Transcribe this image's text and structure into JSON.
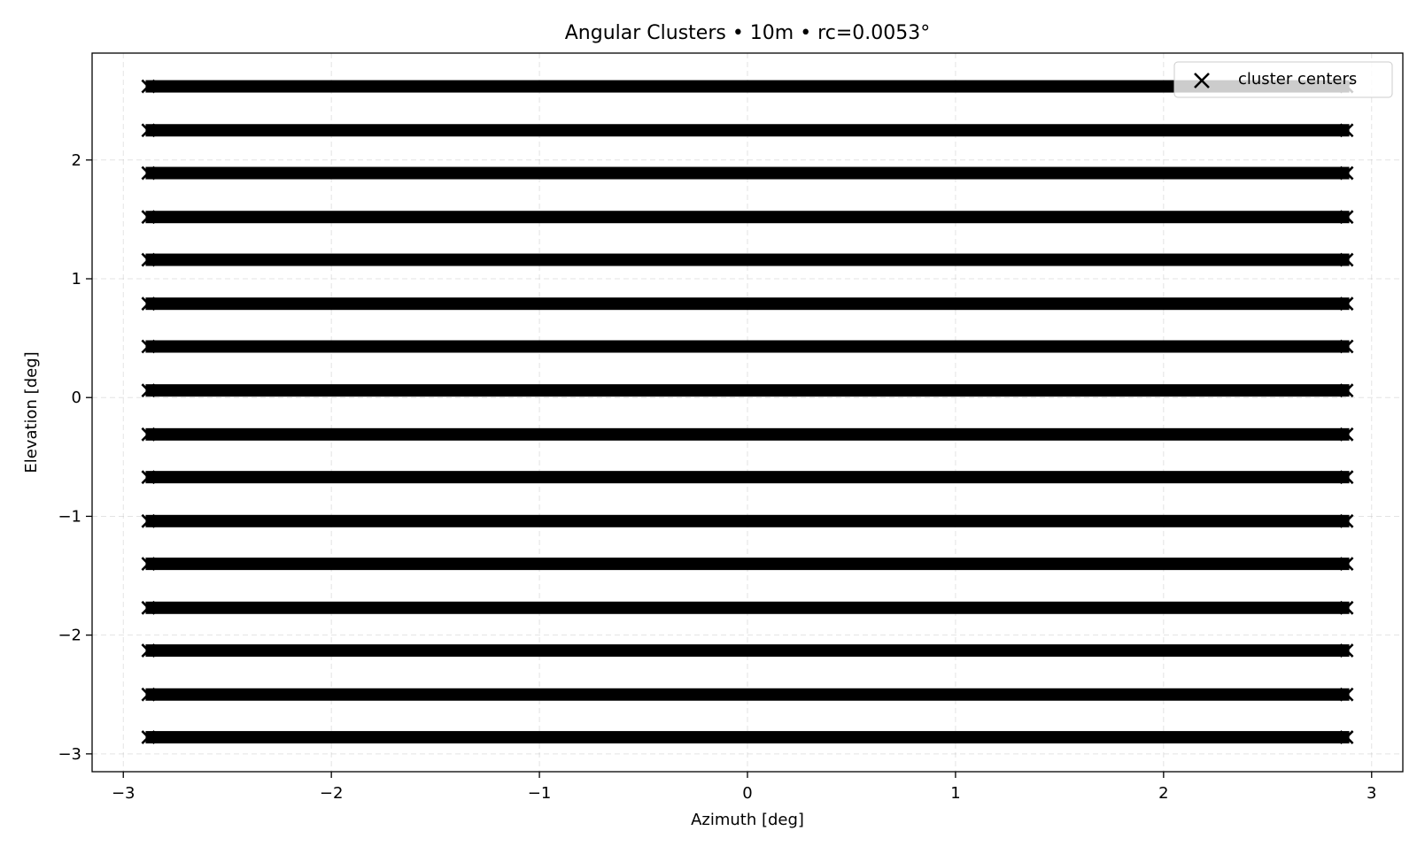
{
  "chart_data": {
    "type": "scatter",
    "title": "Angular Clusters • 10m • rc=0.0053°",
    "xlabel": "Azimuth [deg]",
    "ylabel": "Elevation [deg]",
    "xlim": [
      -3.15,
      3.15
    ],
    "ylim": [
      -3.15,
      2.9
    ],
    "xticks": [
      -3,
      -2,
      -1,
      0,
      1,
      2,
      3
    ],
    "xtick_labels": [
      "−3",
      "−2",
      "−1",
      "0",
      "1",
      "2",
      "3"
    ],
    "yticks": [
      -3,
      -2,
      -1,
      0,
      1,
      2
    ],
    "ytick_labels": [
      "−3",
      "−2",
      "−1",
      "0",
      "1",
      "2"
    ],
    "grid": true,
    "legend_position": "top-right",
    "marker": "x",
    "marker_color": "#000000",
    "series": [
      {
        "name": "cluster centers",
        "x_range": [
          -2.88,
          2.88
        ],
        "rows_elevation": [
          2.62,
          2.25,
          1.89,
          1.52,
          1.16,
          0.79,
          0.43,
          0.06,
          -0.31,
          -0.67,
          -1.04,
          -1.4,
          -1.77,
          -2.13,
          -2.5,
          -2.86
        ]
      }
    ]
  }
}
